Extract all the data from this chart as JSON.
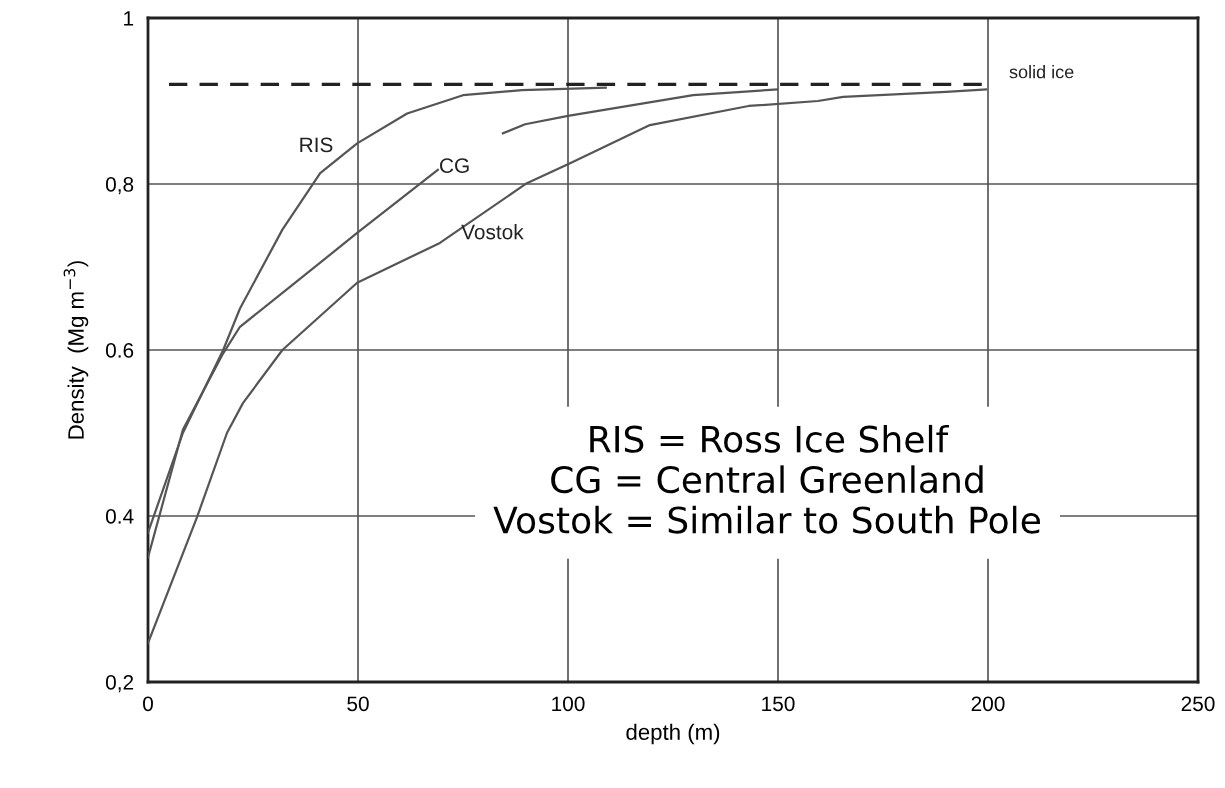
{
  "chart_data": {
    "type": "line",
    "xlabel": "depth (m)",
    "ylabel": "Density  (Mg m$^{−3}$)",
    "xlim": [
      0,
      250
    ],
    "xticks": [
      0,
      50,
      100,
      150,
      200,
      250
    ],
    "ylim": [
      0.2,
      1
    ],
    "yticks": [
      {
        "value": 0.2,
        "label": "0,2"
      },
      0.4,
      0.6,
      {
        "value": 0.8,
        "label": "0,8"
      },
      1
    ],
    "grid": true,
    "legend": false,
    "marker": "none",
    "series": [
      {
        "name": "RIS",
        "color": "#555555",
        "x": [
          0,
          8.3,
          17.9,
          21.9,
          32,
          41,
          49.8,
          61.7,
          75,
          89,
          109
        ],
        "values": [
          0.38,
          0.5,
          0.6,
          0.65,
          0.745,
          0.813,
          0.849,
          0.885,
          0.907,
          0.913,
          0.916
        ]
      },
      {
        "name": "CG",
        "color": "#555555",
        "x": [
          0,
          8.3,
          17.9,
          21.9,
          33.8,
          49.8,
          69,
          77,
          84.5,
          89.8,
          100,
          129.8,
          149.8
        ],
        "values": [
          0.35,
          0.504,
          0.596,
          0.628,
          0.676,
          0.741,
          0.817,
          null,
          0.861,
          0.872,
          0.882,
          0.907,
          0.914
        ]
      },
      {
        "name": "Vostok",
        "color": "#555555",
        "x": [
          0,
          11.7,
          18.8,
          22.6,
          32,
          49.8,
          69.5,
          90.2,
          100.5,
          119.5,
          143,
          159.5,
          165.5,
          190,
          199.5
        ],
        "values": [
          0.247,
          0.399,
          0.5,
          0.536,
          0.6,
          0.681,
          0.729,
          0.801,
          0.825,
          0.871,
          0.894,
          0.9,
          0.905,
          0.911,
          0.914
        ]
      },
      {
        "name": "solid ice",
        "color": "#222222",
        "line_style": "dashed",
        "x": [
          5,
          200
        ],
        "values": [
          0.92,
          0.92
        ]
      }
    ],
    "annotations": [
      "RIS = Ross Ice Shelf\nCG = Central Greenland\nVostok = Similar to South Pole"
    ]
  }
}
